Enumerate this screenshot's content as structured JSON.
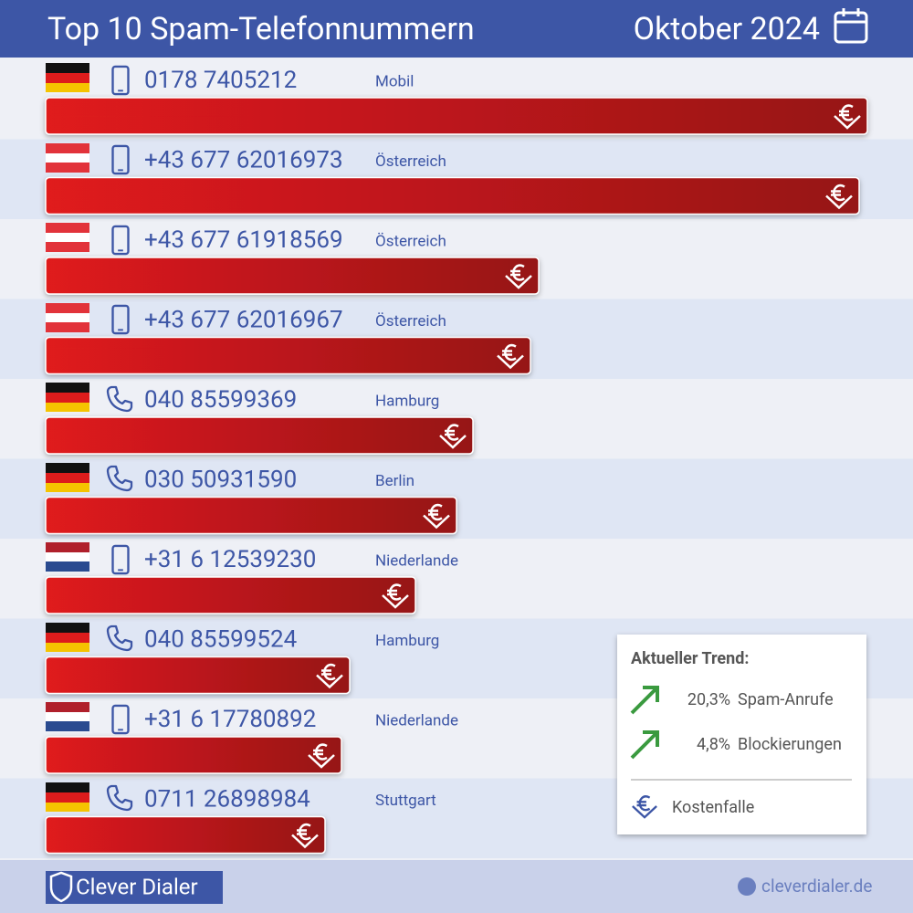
{
  "header": {
    "title": "Top 10 Spam-Telefonnummern",
    "date": "Oktober 2024"
  },
  "chart_data": {
    "type": "bar",
    "orientation": "horizontal",
    "categories": [
      "0178 7405212",
      "+43 677 62016973",
      "+43 677 61918569",
      "+43 677 62016967",
      "040 85599369",
      "030 50931590",
      "+31 6 12539230",
      "040 85599524",
      "+31 6 17780892",
      "0711 26898984"
    ],
    "locations": [
      "Mobil",
      "Österreich",
      "Österreich",
      "Österreich",
      "Hamburg",
      "Berlin",
      "Niederlande",
      "Hamburg",
      "Niederlande",
      "Stuttgart"
    ],
    "values": [
      100,
      99,
      60,
      59,
      52,
      50,
      45,
      37,
      36,
      34
    ],
    "xlim": [
      0,
      100
    ],
    "color": "#d8191e"
  },
  "trend": {
    "title": "Aktueller Trend:",
    "items": [
      {
        "value": "20,3%",
        "label": "Spam-Anrufe"
      },
      {
        "value": "4,8%",
        "label": "Blockierungen"
      }
    ],
    "legend": "Kostenfalle"
  },
  "footer": {
    "brand": "Clever Dialer",
    "website": "cleverdialer.de"
  }
}
